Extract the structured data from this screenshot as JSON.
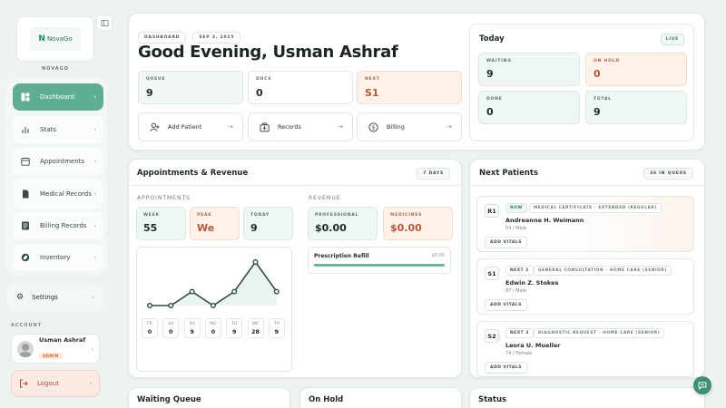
{
  "sidebar": {
    "logo_text": "NovaGo",
    "brand": "NOVAGO",
    "items": [
      {
        "label": "Dashboard",
        "icon": "dashboard-icon",
        "active": true
      },
      {
        "label": "Stats",
        "icon": "bar-chart-icon"
      },
      {
        "label": "Appointments",
        "icon": "calendar-icon"
      },
      {
        "label": "Medical Records",
        "icon": "document-icon"
      },
      {
        "label": "Billing Records",
        "icon": "billing-icon"
      },
      {
        "label": "Inventory",
        "icon": "inventory-icon"
      }
    ],
    "settings_label": "Settings",
    "account_label": "ACCOUNT",
    "user": {
      "name": "Usman Ashraf",
      "role": "ADMIN"
    },
    "logout_label": "Logout"
  },
  "header": {
    "chip_dashboard": "DASHBOARD",
    "chip_date": "SEP 3, 2025",
    "greeting": "Good Evening, Usman Ashraf",
    "stats": [
      {
        "key": "QUEUE",
        "value": "9"
      },
      {
        "key": "DOCS",
        "value": "0"
      },
      {
        "key": "NEXT",
        "value": "S1"
      }
    ],
    "actions": [
      {
        "label": "Add Patient",
        "icon": "add-user-icon"
      },
      {
        "label": "Records",
        "icon": "records-icon"
      },
      {
        "label": "Billing",
        "icon": "dollar-icon"
      }
    ]
  },
  "today": {
    "title": "Today",
    "badge": "LIVE",
    "stats": [
      {
        "key": "WAITING",
        "value": "9"
      },
      {
        "key": "ON HOLD",
        "value": "0"
      },
      {
        "key": "DONE",
        "value": "0"
      },
      {
        "key": "TOTAL",
        "value": "9"
      }
    ]
  },
  "appointments_revenue": {
    "title": "Appointments & Revenue",
    "range_chip": "7 DAYS",
    "appointments_label": "APPOINTMENTS",
    "revenue_label": "REVENUE",
    "appt_stats": [
      {
        "key": "WEEK",
        "value": "55"
      },
      {
        "key": "PEAK",
        "value": "We"
      },
      {
        "key": "TODAY",
        "value": "9"
      }
    ],
    "revenue_stats": [
      {
        "key": "PROFESSIONAL",
        "value": "$0.00"
      },
      {
        "key": "MEDICINES",
        "value": "$0.00"
      }
    ],
    "rx": {
      "name": "Prescription Refill",
      "amount": "$0.00",
      "progress": 1.0
    }
  },
  "chart_data": {
    "type": "line",
    "categories": [
      "FR",
      "SA",
      "SU",
      "MO",
      "TU",
      "WE",
      "TH"
    ],
    "values": [
      0,
      0,
      9,
      0,
      9,
      28,
      9
    ],
    "ylim": [
      0,
      28
    ],
    "grid": false,
    "color": "#2f4a42"
  },
  "next_patients": {
    "title": "Next Patients",
    "queue_chip": "36 IN QUEUE",
    "vitals_label": "ADD VITALS",
    "patients": [
      {
        "code": "R1",
        "tag": "NOW",
        "type": "MEDICAL CERTIFICATE - EXTENDED (REGULAR)",
        "name": "Andreanne H. Weimann",
        "meta": "54 / Male"
      },
      {
        "code": "S1",
        "tag": "NEXT 2",
        "type": "GENERAL CONSULTATION - HOME CARE (SENIOR)",
        "name": "Edwin Z. Stokes",
        "meta": "87 / Male"
      },
      {
        "code": "S2",
        "tag": "NEXT 3",
        "type": "DIAGNOSTIC REQUEST - HOME CARE (SENIOR)",
        "name": "Leora U. Mueller",
        "meta": "74 / Female"
      }
    ]
  },
  "bottom": {
    "waiting_queue": "Waiting Queue",
    "on_hold": "On Hold",
    "status": "Status"
  },
  "colors": {
    "accent": "#5fae92",
    "peach": "#fdf1e9",
    "mint": "#eef7f2"
  }
}
